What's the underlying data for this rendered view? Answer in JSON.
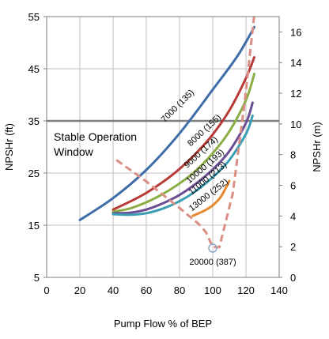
{
  "chart_data": {
    "type": "line",
    "xlabel": "Pump Flow % of BEP",
    "ylabel_left": "NPSHr (ft)",
    "ylabel_right": "NPSHr (m)",
    "xlim": [
      0,
      140
    ],
    "ylim_left": [
      5,
      55
    ],
    "ylim_right": [
      0,
      17
    ],
    "x_ticks": [
      "0",
      "20",
      "40",
      "60",
      "80",
      "100",
      "120",
      "140"
    ],
    "y_ticks_left": [
      "5",
      "15",
      "25",
      "35",
      "45",
      "55"
    ],
    "y_ticks_right": [
      "0",
      "2",
      "4",
      "6",
      "8",
      "10",
      "12",
      "14",
      "16"
    ],
    "grid": true,
    "reference_line": {
      "y": 35,
      "color": "#808080"
    },
    "annotation": {
      "line1": "Stable Operation",
      "line2": "Window"
    },
    "series": [
      {
        "name": "7000 (135)",
        "color": "#3E6DA8",
        "x": [
          20,
          40,
          60,
          80,
          100,
          115,
          125
        ],
        "y": [
          16,
          20.2,
          25.6,
          32.6,
          41,
          47.5,
          53
        ]
      },
      {
        "name": "8000 (155)",
        "color": "#B83A37",
        "x": [
          40,
          50,
          60,
          70,
          80,
          90,
          100,
          110,
          120,
          125
        ],
        "y": [
          18,
          19.5,
          21.2,
          23.3,
          25.8,
          28.8,
          32.4,
          37,
          43.2,
          47.2
        ]
      },
      {
        "name": "9000 (174)",
        "color": "#8BAE44",
        "x": [
          40,
          50,
          60,
          70,
          80,
          90,
          100,
          110,
          120,
          125
        ],
        "y": [
          17.6,
          18.2,
          19.4,
          21,
          23,
          25.5,
          28.8,
          33,
          39,
          44
        ]
      },
      {
        "name": "10000 (193)",
        "color": "#6B4D93",
        "x": [
          40,
          50,
          60,
          70,
          80,
          90,
          100,
          110,
          120,
          124
        ],
        "y": [
          17.3,
          17.4,
          18,
          19.2,
          20.8,
          23,
          25.7,
          29.2,
          34.6,
          38.5
        ]
      },
      {
        "name": "11000 (213)",
        "color": "#3A9DB4",
        "x": [
          40,
          50,
          60,
          70,
          80,
          90,
          100,
          110,
          120,
          124
        ],
        "y": [
          17.1,
          17,
          17.3,
          18.2,
          19.6,
          21.6,
          24.2,
          27.5,
          32.5,
          36
        ]
      },
      {
        "name": "13000 (252)",
        "color": "#E6882E",
        "x": [
          88,
          95,
          100,
          105,
          110
        ],
        "y": [
          16.8,
          17.8,
          18.8,
          20.5,
          23.5
        ]
      }
    ],
    "dashed_series": {
      "name": "20000 (387)",
      "color": "#D98E86",
      "x": [
        42,
        60,
        80,
        92,
        96,
        100,
        104,
        112,
        119,
        125
      ],
      "y": [
        27.5,
        23.4,
        18.3,
        15.1,
        13.6,
        10.8,
        10.8,
        21,
        38,
        57.5
      ]
    },
    "marker": {
      "x": 100,
      "y": 10.6
    }
  }
}
